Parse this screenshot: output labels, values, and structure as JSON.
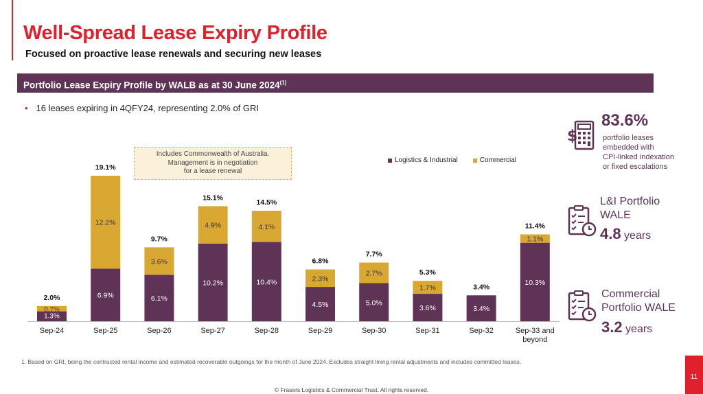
{
  "header": {
    "title": "Well-Spread Lease Expiry Profile",
    "subtitle": "Focused on proactive lease renewals and securing new leases",
    "banner": "Portfolio Lease Expiry Profile by WALB as at 30 June 2024",
    "banner_sup": "(1)"
  },
  "bullet": "16 leases expiring in 4QFY24, representing 2.0% of GRI",
  "callout": {
    "lines": [
      "Includes Commonwealth of Australia.",
      "Management is in negotiation",
      "for a lease renewal"
    ]
  },
  "colors": {
    "accent": "#e0202a",
    "purple": "#5e3356",
    "gold": "#d9a832",
    "callout_bg": "#fbf1da"
  },
  "chart_data": {
    "type": "bar",
    "stacked": true,
    "categories": [
      "Sep-24",
      "Sep-25",
      "Sep-26",
      "Sep-27",
      "Sep-28",
      "Sep-29",
      "Sep-30",
      "Sep-31",
      "Sep-32",
      "Sep-33 and beyond"
    ],
    "series": [
      {
        "name": "Logistics & Industrial",
        "color": "#5e3356",
        "values": [
          1.3,
          6.9,
          6.1,
          10.2,
          10.4,
          4.5,
          5.0,
          3.6,
          3.4,
          10.3
        ]
      },
      {
        "name": "Commercial",
        "color": "#d9a832",
        "values": [
          0.7,
          12.2,
          3.6,
          4.9,
          4.1,
          2.3,
          2.7,
          1.7,
          null,
          1.1
        ]
      }
    ],
    "totals": [
      2.0,
      19.1,
      9.7,
      15.1,
      14.5,
      6.8,
      7.7,
      5.3,
      3.4,
      11.4
    ],
    "legend_position": "top-right",
    "grid": false
  },
  "kpis": [
    {
      "value": "83.6%",
      "text": [
        "portfolio leases",
        "embedded with",
        "CPI-linked indexation",
        "or fixed escalations"
      ],
      "icon": "calculator-icon"
    },
    {
      "title": [
        "L&I Portfolio",
        "WALE"
      ],
      "value": "4.8",
      "unit": "years",
      "icon": "checklist-clock-icon"
    },
    {
      "title": [
        "Commercial",
        "Portfolio WALE"
      ],
      "value": "3.2",
      "unit": "years",
      "icon": "checklist-clock-icon"
    }
  ],
  "footnote": "1. Based on GRI, being the contracted rental income and estimated recoverable outgoings for the month of June 2024. Excludes straight lining rental adjustments and includes committed leases.",
  "copyright": "© Frasers Logistics & Commercial Trust. All rights reserved.",
  "page_number": "11"
}
